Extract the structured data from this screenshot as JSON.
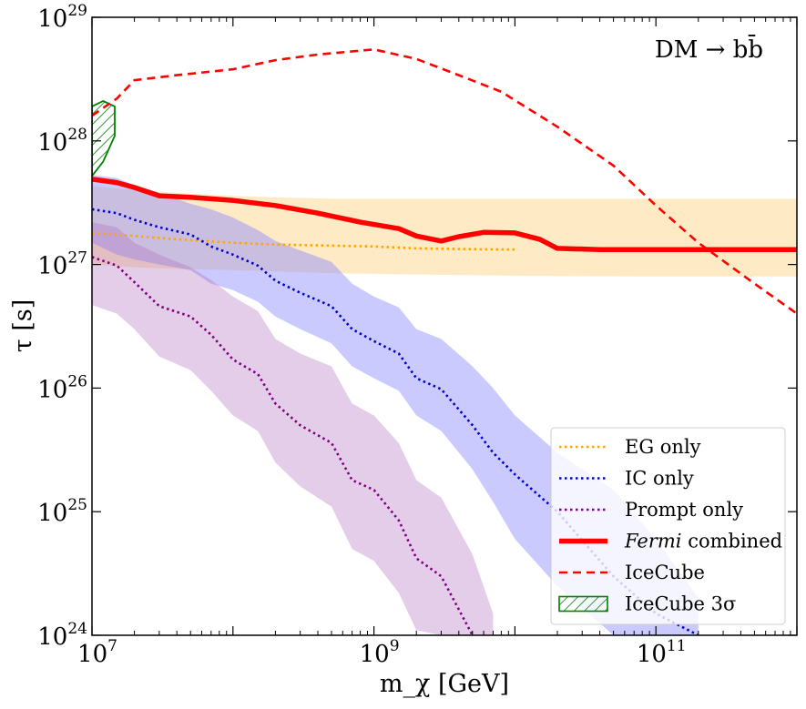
{
  "chart_data": {
    "type": "line",
    "title": "",
    "annotation": "DM → bb̄",
    "xlabel": "m_χ [GeV]",
    "ylabel": "τ [s]",
    "xscale": "log",
    "yscale": "log",
    "xlim": [
      10000000.0,
      1000000000000.0
    ],
    "ylim": [
      1e+24,
      1e+29
    ],
    "x_ticks": [
      {
        "value": 10000000.0,
        "base": "10",
        "exp": "7"
      },
      {
        "value": 1000000000.0,
        "base": "10",
        "exp": "9"
      },
      {
        "value": 100000000000.0,
        "base": "10",
        "exp": "11"
      }
    ],
    "y_ticks": [
      {
        "value": 1e+24,
        "base": "10",
        "exp": "24"
      },
      {
        "value": 1e+25,
        "base": "10",
        "exp": "25"
      },
      {
        "value": 1e+26,
        "base": "10",
        "exp": "26"
      },
      {
        "value": 1e+27,
        "base": "10",
        "exp": "27"
      },
      {
        "value": 1e+28,
        "base": "10",
        "exp": "28"
      },
      {
        "value": 1e+29,
        "base": "10",
        "exp": "29"
      }
    ],
    "grid": false,
    "legend_position": "bottom-right",
    "series": [
      {
        "name": "EG only",
        "color": "#ffa500",
        "style": "dotted",
        "x": [
          10000000.0,
          20000000.0,
          40000000.0,
          100000000.0,
          200000000.0,
          500000000.0,
          1000000000.0,
          2000000000.0,
          5000000000.0,
          10000000000.0
        ],
        "y": [
          1.8e+27,
          1.7e+27,
          1.6e+27,
          1.5e+27,
          1.45e+27,
          1.42e+27,
          1.4e+27,
          1.35e+27,
          1.33e+27,
          1.32e+27
        ],
        "band_upper": [
          4.3e+27,
          4e+27,
          3.8e+27,
          3.6e+27,
          3.5e+27,
          3.4e+27,
          3.4e+27,
          3.4e+27,
          3.4e+27,
          3.4e+27,
          3.4e+27,
          3.4e+27
        ],
        "band_lower": [
          1e+27,
          9.5e+26,
          9.2e+26,
          9e+26,
          8.8e+26,
          8.5e+26,
          8.4e+26,
          8.3e+26,
          8.2e+26,
          8.1e+26,
          8e+26,
          8e+26
        ],
        "band_x": [
          10000000.0,
          20000000.0,
          40000000.0,
          100000000.0,
          200000000.0,
          500000000.0,
          1000000000.0,
          2000000000.0,
          5000000000.0,
          10000000000.0,
          100000000000.0,
          1000000000000.0
        ]
      },
      {
        "name": "IC only",
        "color": "#0000cc",
        "style": "dotted",
        "x": [
          10000000.0,
          15000000.0,
          20000000.0,
          30000000.0,
          50000000.0,
          70000000.0,
          100000000.0,
          150000000.0,
          200000000.0,
          300000000.0,
          500000000.0,
          700000000.0,
          1000000000.0,
          1500000000.0,
          2000000000.0,
          3000000000.0,
          5000000000.0,
          7000000000.0,
          10000000000.0,
          20000000000.0,
          50000000000.0,
          100000000000.0,
          200000000000.0
        ],
        "y": [
          2.8e+27,
          2.6e+27,
          2.3e+27,
          2e+27,
          1.75e+27,
          1.4e+27,
          1.2e+27,
          9.8e+26,
          7.4e+26,
          5.9e+26,
          4.6e+26,
          3e+26,
          2.4e+26,
          1.9e+26,
          1.2e+26,
          9.8e+25,
          5e+25,
          3e+25,
          2e+25,
          1e+25,
          3e+24,
          1.5e+24,
          1e+24
        ],
        "band_upper": [
          5.3e+27,
          5e+27,
          4.4e+27,
          3.8e+27,
          3.1e+27,
          2.8e+27,
          2.4e+27,
          1.9e+27,
          1.55e+27,
          1.3e+27,
          1.05e+27,
          7e+26,
          5.5e+26,
          4.5e+26,
          3e+26,
          2.5e+26,
          1.5e+26,
          1e+26,
          6e+25,
          3e+25,
          1.5e+25,
          6e+24,
          2e+24
        ],
        "band_lower": [
          1.5e+27,
          1.2e+27,
          1.1e+27,
          1e+27,
          9e+26,
          7e+26,
          6.2e+26,
          5e+26,
          3.8e+26,
          3e+26,
          2.3e+26,
          1.5e+26,
          1.2e+26,
          9.5e+25,
          6e+25,
          4.5e+25,
          2.2e+25,
          1.2e+25,
          6e+24,
          2.5e+24,
          1e+24,
          1e+24,
          1e+24
        ],
        "band_x": [
          10000000.0,
          15000000.0,
          20000000.0,
          30000000.0,
          50000000.0,
          70000000.0,
          100000000.0,
          150000000.0,
          200000000.0,
          300000000.0,
          500000000.0,
          700000000.0,
          1000000000.0,
          1500000000.0,
          2000000000.0,
          3000000000.0,
          5000000000.0,
          7000000000.0,
          10000000000.0,
          20000000000.0,
          50000000000.0,
          100000000000.0,
          200000000000.0
        ]
      },
      {
        "name": "Prompt only",
        "color": "#800080",
        "style": "dotted",
        "x": [
          10000000.0,
          15000000.0,
          20000000.0,
          30000000.0,
          50000000.0,
          70000000.0,
          100000000.0,
          150000000.0,
          200000000.0,
          300000000.0,
          500000000.0,
          700000000.0,
          1000000000.0,
          1500000000.0,
          2000000000.0,
          3000000000.0,
          5000000000.0
        ],
        "y": [
          1.15e+27,
          9.8e+26,
          7.2e+26,
          4.6e+26,
          3.8e+26,
          2.7e+26,
          1.7e+26,
          1.3e+26,
          7.5e+25,
          5e+25,
          3.6e+25,
          1.8e+25,
          1.5e+25,
          8.5e+24,
          4.2e+24,
          3e+24,
          1e+24
        ],
        "band_upper": [
          2.2e+27,
          2e+27,
          1.5e+27,
          1.2e+27,
          9.5e+26,
          7.5e+26,
          5.5e+26,
          4.2e+26,
          2.5e+26,
          1.9e+26,
          1.5e+26,
          7.5e+25,
          6e+25,
          3.6e+25,
          1.8e+25,
          1.3e+25,
          4.5e+24,
          1.5e+24
        ],
        "band_lower": [
          4.7e+26,
          4e+26,
          3e+26,
          1.8e+26,
          1.4e+26,
          9.5e+25,
          6e+25,
          4.5e+25,
          2.5e+25,
          1.6e+25,
          1.1e+25,
          5e+24,
          4e+24,
          2.2e+24,
          1.1e+24,
          1e+24,
          1e+24,
          1e+24
        ],
        "band_x": [
          10000000.0,
          15000000.0,
          20000000.0,
          30000000.0,
          50000000.0,
          70000000.0,
          100000000.0,
          150000000.0,
          200000000.0,
          300000000.0,
          500000000.0,
          700000000.0,
          1000000000.0,
          1500000000.0,
          2000000000.0,
          3000000000.0,
          5000000000.0,
          7000000000.0
        ]
      },
      {
        "name": "Fermi combined",
        "name_italic": "Fermi",
        "name_rest": " combined",
        "color": "#ff0000",
        "style": "solid-thick",
        "x": [
          10000000.0,
          15000000.0,
          20000000.0,
          30000000.0,
          50000000.0,
          100000000.0,
          200000000.0,
          400000000.0,
          800000000.0,
          1500000000.0,
          2000000000.0,
          3000000000.0,
          4000000000.0,
          6000000000.0,
          10000000000.0,
          15000000000.0,
          20000000000.0,
          40000000000.0,
          100000000000.0,
          300000000000.0,
          1000000000000.0
        ],
        "y": [
          4.9e+27,
          4.6e+27,
          4.2e+27,
          3.6e+27,
          3.5e+27,
          3.3e+27,
          3e+27,
          2.6e+27,
          2.2e+27,
          1.95e+27,
          1.7e+27,
          1.55e+27,
          1.68e+27,
          1.82e+27,
          1.8e+27,
          1.6e+27,
          1.35e+27,
          1.32e+27,
          1.32e+27,
          1.32e+27,
          1.32e+27
        ]
      },
      {
        "name": "IceCube",
        "color": "#ff0000",
        "style": "dashed",
        "x": [
          10000000.0,
          15000000.0,
          20000000.0,
          40000000.0,
          100000000.0,
          200000000.0,
          400000000.0,
          1000000000.0,
          2000000000.0,
          4000000000.0,
          8000000000.0,
          20000000000.0,
          50000000000.0,
          100000000000.0,
          200000000000.0,
          500000000000.0,
          1000000000000.0
        ],
        "y": [
          1.6e+28,
          2.2e+28,
          3.1e+28,
          3.4e+28,
          3.8e+28,
          4.5e+28,
          5e+28,
          5.5e+28,
          4.6e+28,
          3.4e+28,
          2.5e+28,
          1.3e+28,
          6.3e+27,
          3e+27,
          1.5e+27,
          7e+26,
          4e+26
        ]
      },
      {
        "name": "IceCube 3σ",
        "color": "#008000",
        "style": "hatched-region",
        "region_x": [
          10000000.0,
          12000000.0,
          14500000.0,
          14500000.0,
          12000000.0,
          10000000.0
        ],
        "region_y": [
          1.9e+28,
          2.1e+28,
          1.9e+28,
          1.1e+28,
          6.8e+27,
          5.2e+27
        ]
      }
    ]
  }
}
